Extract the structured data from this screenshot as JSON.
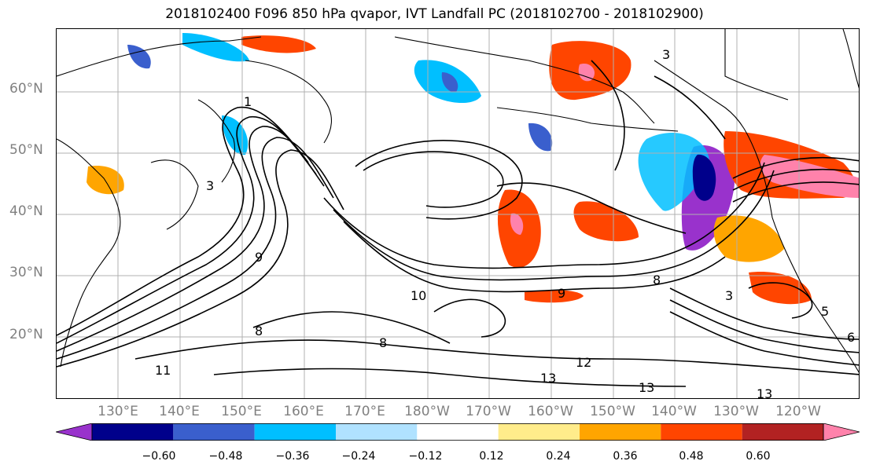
{
  "title": "2018102400 F096 850 hPa qvapor, IVT Landfall PC (2018102700 - 2018102900)",
  "lat_labels": [
    "60°N",
    "50°N",
    "40°N",
    "30°N",
    "20°N"
  ],
  "lon_labels": [
    "130°E",
    "140°E",
    "150°E",
    "160°E",
    "170°E",
    "180°W",
    "170°W",
    "160°W",
    "150°W",
    "140°W",
    "130°W",
    "120°W"
  ],
  "contour_labels": [
    "3",
    "1",
    "3",
    "9",
    "10",
    "9",
    "8",
    "8",
    "12",
    "13",
    "13",
    "13",
    "11",
    "8",
    "3",
    "5",
    "6"
  ],
  "colorbar": {
    "tick_labels": [
      "−0.60",
      "−0.48",
      "−0.36",
      "−0.24",
      "−0.12",
      "0.12",
      "0.24",
      "0.36",
      "0.48",
      "0.60"
    ],
    "colors": [
      "#9932CC",
      "#00008B",
      "#3A5FCD",
      "#00BFFF",
      "#B0E2FF",
      "#FFFFFF",
      "#FFEC8B",
      "#FFA500",
      "#FF4500",
      "#B22222",
      "#FF82AB"
    ]
  }
}
